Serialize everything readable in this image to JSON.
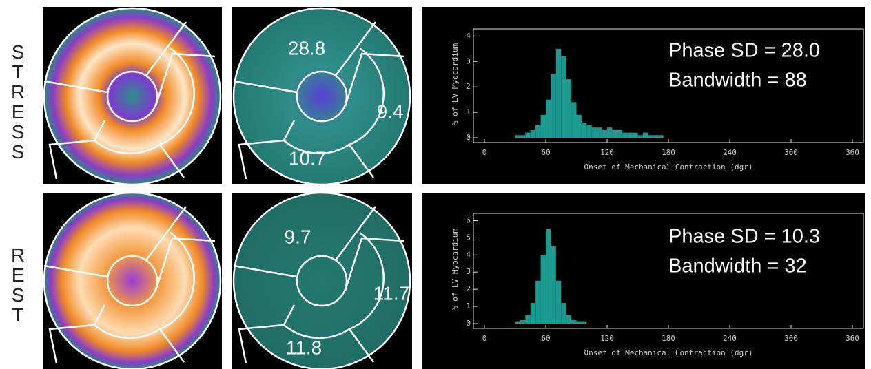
{
  "rows": [
    {
      "label": "STRESS",
      "polar_values": [
        "28.8",
        "9.4",
        "10.7"
      ]
    },
    {
      "label": "REST",
      "polar_values": [
        "9.7",
        "11.7",
        "11.8"
      ]
    }
  ],
  "chart_data": [
    {
      "type": "histogram",
      "annotations": [
        "Phase SD = 28.0",
        "Bandwidth = 88"
      ],
      "xlabel": "Onset of Mechanical Contraction (dgr)",
      "ylabel": "% of LV Myocardium",
      "bins": [
        30,
        35,
        40,
        45,
        50,
        55,
        60,
        65,
        70,
        75,
        80,
        85,
        90,
        95,
        100,
        105,
        110,
        115,
        120,
        125,
        130,
        135,
        140,
        145,
        150,
        155,
        160,
        165,
        170,
        175,
        180
      ],
      "values": [
        0.1,
        0.1,
        0.2,
        0.3,
        0.5,
        0.9,
        1.5,
        2.5,
        3.5,
        3.2,
        2.3,
        1.4,
        0.9,
        0.6,
        0.5,
        0.4,
        0.4,
        0.3,
        0.4,
        0.3,
        0.3,
        0.2,
        0.2,
        0.2,
        0.1,
        0.2,
        0.1,
        0.1,
        0.1,
        0
      ],
      "color": "#1c9a90",
      "xlim": [
        0,
        360
      ],
      "xticks": [
        0,
        60,
        120,
        180,
        240,
        300,
        360
      ],
      "ylim": [
        0,
        4.2
      ],
      "yticks": [
        0,
        1,
        2,
        3,
        4
      ]
    },
    {
      "type": "histogram",
      "annotations": [
        "Phase SD = 10.3",
        "Bandwidth = 32"
      ],
      "xlabel": "Onset of Mechanical Contraction (dgr)",
      "ylabel": "% of LV Myocardium",
      "bins": [
        30,
        35,
        40,
        45,
        50,
        55,
        60,
        65,
        70,
        75,
        80,
        85,
        90,
        95,
        100
      ],
      "values": [
        0.1,
        0.2,
        0.5,
        1.2,
        2.5,
        4,
        5.5,
        4.5,
        2.5,
        1.2,
        0.5,
        0.2,
        0.1,
        0.1
      ],
      "color": "#1c9a90",
      "xlim": [
        0,
        360
      ],
      "xticks": [
        0,
        60,
        120,
        180,
        240,
        300,
        360
      ],
      "ylim": [
        0,
        6.3
      ],
      "yticks": [
        0,
        1,
        2,
        3,
        4,
        5,
        6
      ]
    }
  ]
}
